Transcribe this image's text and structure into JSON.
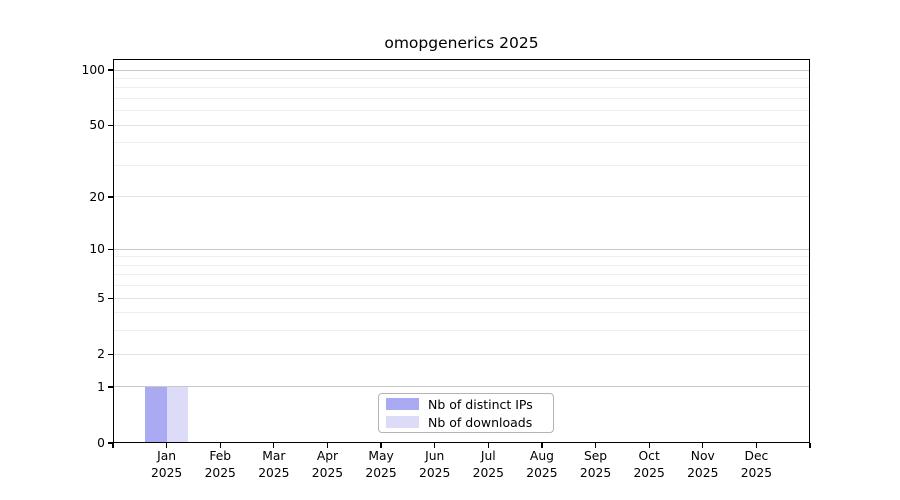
{
  "figure": {
    "title": "omopgenerics 2025"
  },
  "chart_data": {
    "type": "bar",
    "title": "omopgenerics 2025",
    "x_axis": {
      "months": [
        "Jan",
        "Feb",
        "Mar",
        "Apr",
        "May",
        "Jun",
        "Jul",
        "Aug",
        "Sep",
        "Oct",
        "Nov",
        "Dec"
      ],
      "year": "2025"
    },
    "y_axis": {
      "scale": "log10(value+1)",
      "range": [
        0,
        100
      ],
      "major_ticks": [
        0,
        1,
        2,
        5,
        10,
        20,
        50,
        100
      ],
      "mid_gridlines": [
        2,
        5,
        20,
        50
      ],
      "minor_gridlines": [
        3,
        4,
        6,
        7,
        8,
        9,
        30,
        40,
        60,
        70,
        80,
        90
      ],
      "emphasized_gridlines": [
        1,
        10,
        100
      ]
    },
    "series": [
      {
        "name": "Nb of distinct IPs",
        "color": "#aaaaf2",
        "values": [
          1,
          0,
          0,
          0,
          0,
          0,
          0,
          0,
          0,
          0,
          0,
          0
        ]
      },
      {
        "name": "Nb of downloads",
        "color": "#dcdcf8",
        "values": [
          1,
          0,
          0,
          0,
          0,
          0,
          0,
          0,
          0,
          0,
          0,
          0
        ]
      }
    ],
    "legend": {
      "position": "bottom-center",
      "entries": [
        "Nb of distinct IPs",
        "Nb of downloads"
      ]
    },
    "grid": true
  },
  "colors": {
    "spine": "#000000",
    "grid_major": "#c8c8c8",
    "grid_mid": "#e3e3e3",
    "grid_minor": "#eeeeee",
    "background": "#ffffff"
  }
}
